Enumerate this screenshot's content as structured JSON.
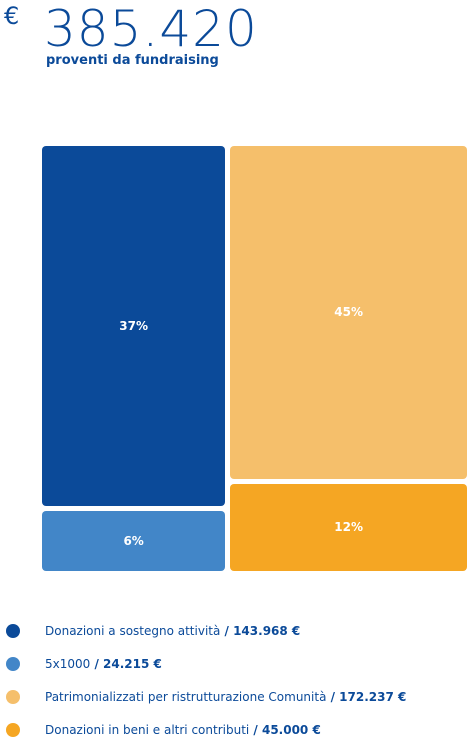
{
  "header": {
    "currency_symbol": "€",
    "total": "385.420",
    "subtitle": "proventi da fundraising"
  },
  "colors": {
    "text": "#0b4a99",
    "donazioni": "#0b4a99",
    "cinque_per_mille": "#4286c8",
    "patrimonializzati": "#f5bf6b",
    "beni": "#f5a623"
  },
  "chart_data": {
    "type": "treemap",
    "title": "",
    "total_value": 385420,
    "series": [
      {
        "name": "Donazioni a sostegno attività",
        "value": 143968,
        "value_label": "143.968 €",
        "percent_label": "37%",
        "color": "#0b4a99"
      },
      {
        "name": "5x1000",
        "value": 24215,
        "value_label": "24.215 €",
        "percent_label": "6%",
        "color": "#4286c8"
      },
      {
        "name": "Patrimonializzati per ristrutturazione Comunità",
        "value": 172237,
        "value_label": "172.237 €",
        "percent_label": "45%",
        "color": "#f5bf6b"
      },
      {
        "name": "Donazioni in beni e altri contributi",
        "value": 45000,
        "value_label": "45.000 €",
        "percent_label": "12%",
        "color": "#f5a623"
      }
    ]
  },
  "legend": {
    "separator": " / ",
    "items": [
      {
        "label": "Donazioni a sostegno attività",
        "value": "143.968 €",
        "color": "#0b4a99"
      },
      {
        "label": "5x1000",
        "value": "24.215 €",
        "color": "#4286c8"
      },
      {
        "label": "Patrimonializzati per ristrutturazione Comunità",
        "value": "172.237 €",
        "color": "#f5bf6b"
      },
      {
        "label": "Donazioni in beni e altri contributi",
        "value": "45.000 €",
        "color": "#f5a623"
      }
    ]
  }
}
